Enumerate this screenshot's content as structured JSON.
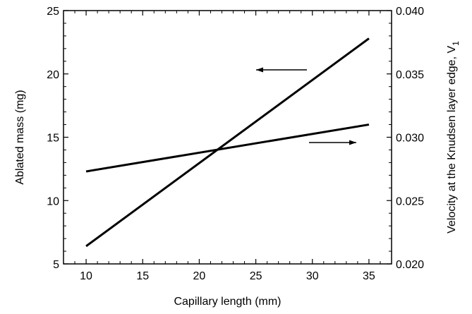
{
  "chart_data": {
    "type": "line",
    "xlabel": "Capillary length (mm)",
    "ylabel": "Ablated mass (mg)",
    "y2label": "Velocity at the Knudsen layer edge, V",
    "y2label_subscript": "1",
    "xlim": [
      8,
      37
    ],
    "ylim": [
      5,
      25
    ],
    "y2lim": [
      0.02,
      0.04
    ],
    "x_ticks": [
      "10",
      "15",
      "20",
      "25",
      "30",
      "35"
    ],
    "y_ticks": [
      "5",
      "10",
      "15",
      "20",
      "25"
    ],
    "y2_ticks": [
      "0.020",
      "0.025",
      "0.030",
      "0.035",
      "0.040"
    ],
    "grid": false,
    "series": [
      {
        "axis": "left",
        "x": [
          10,
          35
        ],
        "values": [
          6.4,
          22.8
        ]
      },
      {
        "axis": "right",
        "x": [
          10,
          35
        ],
        "values": [
          0.0273,
          0.031
        ]
      }
    ],
    "annotations": [
      {
        "type": "arrow",
        "direction": "left",
        "points_to": "left-axis"
      },
      {
        "type": "arrow",
        "direction": "right",
        "points_to": "right-axis"
      }
    ]
  }
}
